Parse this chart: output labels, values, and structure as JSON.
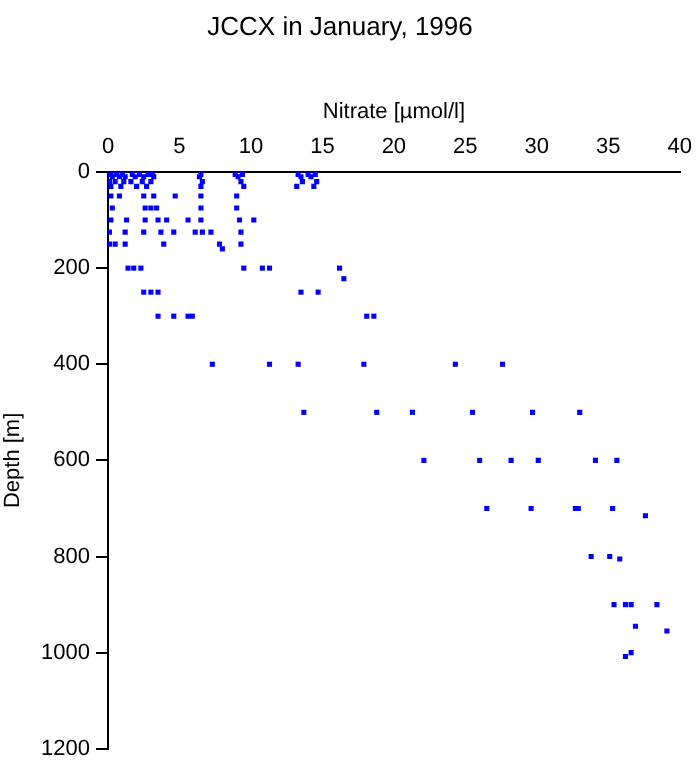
{
  "chart_data": {
    "type": "scatter",
    "title": "JCCX in January, 1996",
    "xlabel": "Nitrate [µmol/l]",
    "ylabel": "Depth [m]",
    "marker": "square",
    "xlim": [
      0,
      40
    ],
    "xticks": [
      0,
      5,
      10,
      15,
      20,
      25,
      30,
      35,
      40
    ],
    "ylim": [
      1200,
      0
    ],
    "yticks": [
      0,
      200,
      400,
      600,
      800,
      1000,
      1200
    ],
    "series": [
      {
        "color": "#0000ff",
        "x": [
          0.2,
          0.6,
          1.0,
          1.7,
          2.2,
          2.8,
          3.1,
          6.5,
          8.9,
          9.4,
          13.3,
          14.0,
          14.5,
          0.3,
          0.8,
          1.2,
          1.9,
          2.5,
          3.2,
          6.4,
          9.1,
          13.5,
          14.2,
          0.1,
          0.5,
          1.1,
          1.6,
          2.4,
          3.0,
          6.6,
          9.3,
          13.6,
          14.6,
          0.2,
          0.9,
          2.0,
          2.7,
          6.5,
          9.5,
          13.2,
          14.4,
          0.2,
          0.8,
          2.5,
          3.2,
          4.7,
          6.5,
          9.0,
          0.3,
          2.6,
          3.0,
          3.4,
          6.5,
          9.0,
          0.2,
          1.3,
          2.6,
          3.5,
          4.1,
          5.6,
          6.5,
          9.2,
          10.2,
          0.1,
          1.2,
          2.5,
          3.7,
          4.6,
          6.1,
          6.6,
          7.2,
          9.3,
          0.1,
          0.5,
          1.2,
          3.9,
          7.8,
          9.3,
          8.0,
          1.4,
          1.8,
          2.3,
          9.5,
          10.8,
          11.3,
          16.2,
          16.5,
          2.5,
          3.0,
          3.5,
          13.5,
          14.7,
          3.5,
          4.6,
          5.6,
          5.9,
          18.1,
          18.6,
          7.3,
          11.3,
          13.3,
          17.9,
          24.3,
          27.6,
          13.7,
          18.8,
          21.3,
          25.5,
          29.7,
          33.0,
          22.1,
          26.0,
          28.2,
          30.1,
          34.1,
          35.6,
          26.5,
          29.6,
          32.7,
          32.9,
          35.3,
          37.6,
          33.8,
          35.1,
          35.8,
          35.4,
          36.2,
          36.6,
          38.4,
          36.9,
          39.1,
          36.6,
          36.2
        ],
        "values": [
          5,
          5,
          5,
          5,
          5,
          5,
          5,
          5,
          5,
          5,
          5,
          5,
          5,
          10,
          10,
          10,
          10,
          10,
          10,
          10,
          10,
          10,
          10,
          20,
          20,
          20,
          20,
          20,
          20,
          20,
          20,
          20,
          20,
          30,
          30,
          30,
          30,
          30,
          30,
          30,
          30,
          50,
          50,
          50,
          50,
          50,
          50,
          50,
          75,
          75,
          75,
          75,
          75,
          75,
          100,
          100,
          100,
          100,
          100,
          100,
          100,
          100,
          100,
          125,
          125,
          125,
          125,
          125,
          125,
          125,
          125,
          125,
          150,
          150,
          150,
          150,
          150,
          150,
          160,
          200,
          200,
          200,
          200,
          200,
          200,
          200,
          222,
          250,
          250,
          250,
          250,
          250,
          300,
          300,
          300,
          300,
          300,
          300,
          400,
          400,
          400,
          400,
          400,
          400,
          500,
          500,
          500,
          500,
          500,
          500,
          600,
          600,
          600,
          600,
          600,
          600,
          700,
          700,
          700,
          700,
          700,
          715,
          800,
          800,
          805,
          900,
          900,
          900,
          900,
          945,
          955,
          1000,
          1008
        ]
      }
    ]
  }
}
